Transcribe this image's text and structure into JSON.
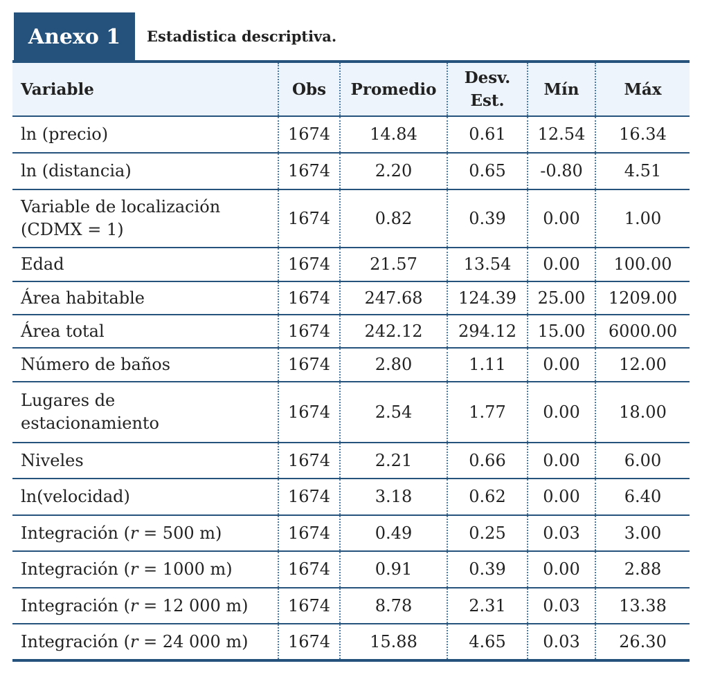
{
  "header": {
    "tag": "Anexo 1",
    "title": "Estadistica descriptiva."
  },
  "table": {
    "columns": [
      "Variable",
      "Obs",
      "Promedio",
      {
        "lines": [
          "Desv.",
          "Est."
        ]
      },
      "Mín",
      "Máx"
    ],
    "rows": [
      [
        "ln (precio)",
        "1674",
        "14.84",
        "0.61",
        "12.54",
        "16.34"
      ],
      [
        "ln (distancia)",
        "1674",
        "2.20",
        "0.65",
        "-0.80",
        "4.51"
      ],
      [
        {
          "lines": [
            "Variable de localización",
            "(CDMX = 1)"
          ]
        },
        "1674",
        "0.82",
        "0.39",
        "0.00",
        "1.00"
      ],
      [
        "Edad",
        "1674",
        "21.57",
        "13.54",
        "0.00",
        "100.00"
      ],
      [
        "Área habitable",
        "1674",
        "247.68",
        "124.39",
        "25.00",
        "1209.00"
      ],
      [
        "Área total",
        "1674",
        "242.12",
        "294.12",
        "15.00",
        "6000.00"
      ],
      [
        "Número de baños",
        "1674",
        "2.80",
        "1.11",
        "0.00",
        "12.00"
      ],
      [
        {
          "lines": [
            "Lugares de",
            "estacionamiento"
          ]
        },
        "1674",
        "2.54",
        "1.77",
        "0.00",
        "18.00"
      ],
      [
        "Niveles",
        "1674",
        "2.21",
        "0.66",
        "0.00",
        "6.00"
      ],
      [
        "ln(velocidad)",
        "1674",
        "3.18",
        "0.62",
        "0.00",
        "6.40"
      ],
      [
        {
          "parts": [
            "Integración (",
            "r",
            " = 500 m)"
          ]
        },
        "1674",
        "0.49",
        "0.25",
        "0.03",
        "3.00"
      ],
      [
        {
          "parts": [
            "Integración (",
            "r",
            " = 1000 m)"
          ]
        },
        "1674",
        "0.91",
        "0.39",
        "0.00",
        "2.88"
      ],
      [
        {
          "parts": [
            "Integración (",
            "r",
            " = 12 000 m)"
          ]
        },
        "1674",
        "8.78",
        "2.31",
        "0.03",
        "13.38"
      ],
      [
        {
          "parts": [
            "Integración (",
            "r",
            " = 24 000 m)"
          ]
        },
        "1674",
        "15.88",
        "4.65",
        "0.03",
        "26.30"
      ]
    ]
  }
}
